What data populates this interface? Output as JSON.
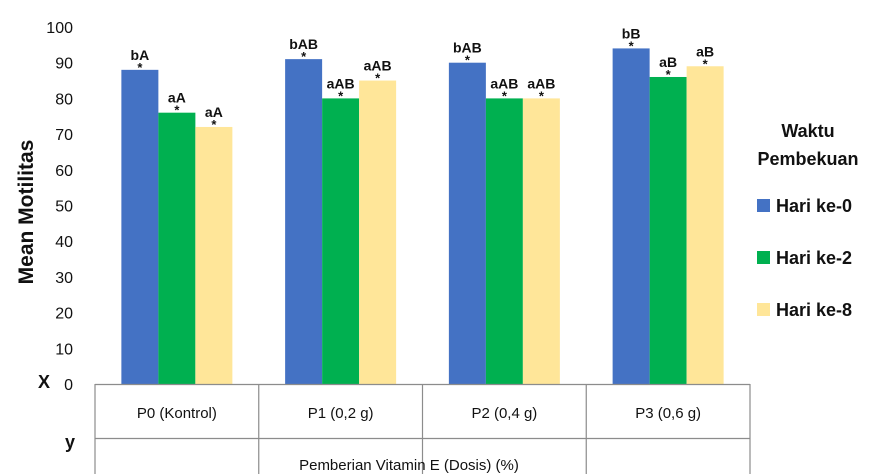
{
  "chart_data": {
    "type": "bar",
    "ylabel": "Mean Motilitas",
    "xlabel": "Pemberian Vitamin E (Dosis) (%)",
    "corner_labels": {
      "x": "X",
      "y": "y"
    },
    "ylim": [
      0,
      100
    ],
    "yticks": [
      0,
      10,
      20,
      30,
      40,
      50,
      60,
      70,
      80,
      90,
      100
    ],
    "grid": false,
    "legend_position": "right",
    "legend_title": [
      "Waktu",
      "Pembekuan"
    ],
    "categories": [
      "P0 (Kontrol)",
      "P1 (0,2 g)",
      "P2 (0,4 g)",
      "P3 (0,6 g)"
    ],
    "series": [
      {
        "name": "Hari ke-0",
        "color": "#4472C4",
        "values": [
          88,
          91,
          90,
          94
        ],
        "labels": [
          "bA",
          "bAB",
          "bAB",
          "bB"
        ]
      },
      {
        "name": "Hari ke-2",
        "color": "#00B050",
        "values": [
          76,
          80,
          80,
          86
        ],
        "labels": [
          "aA",
          "aAB",
          "aAB",
          "aB"
        ]
      },
      {
        "name": "Hari ke-8",
        "color": "#FFE699",
        "values": [
          72,
          85,
          80,
          89
        ],
        "labels": [
          "aA",
          "aAB",
          "aAB",
          "aB"
        ]
      }
    ],
    "marker_symbol": "*"
  }
}
